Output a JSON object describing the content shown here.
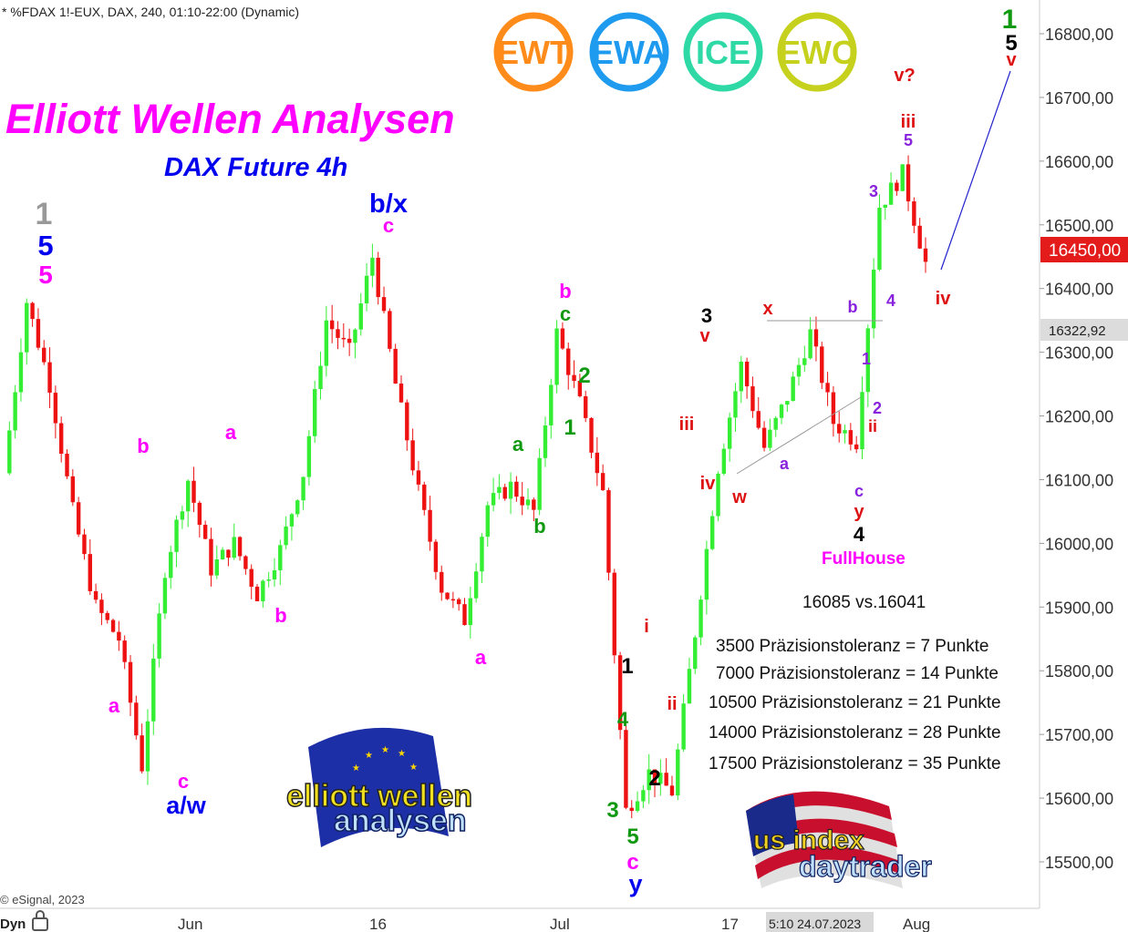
{
  "header": {
    "symbol_line": "* %FDAX 1!-EUX, DAX, 240, 01:10-22:00 (Dynamic)",
    "title": "Elliott Wellen Analysen",
    "subtitle": "DAX Future 4h",
    "copyright": "© eSignal, 2023",
    "corner_label": "Dyn"
  },
  "badges": [
    {
      "text": "EWT",
      "color": "#ff8c1a"
    },
    {
      "text": "EWA",
      "color": "#1e9bef"
    },
    {
      "text": "ICE",
      "color": "#2fd9a6"
    },
    {
      "text": "EWC",
      "color": "#c5d11c"
    }
  ],
  "price_axis": {
    "ticks": [
      "16800,00",
      "16700,00",
      "16600,00",
      "16500,00",
      "16400,00",
      "16300,00",
      "16200,00",
      "16100,00",
      "16000,00",
      "15900,00",
      "15800,00",
      "15700,00",
      "15600,00",
      "15500,00"
    ],
    "current_price": "16450,00",
    "marker_price": "16322,92"
  },
  "time_axis": {
    "labels": [
      "Jun",
      "16",
      "Jul",
      "17",
      "Aug"
    ],
    "cursor_time": "5:10 24.07.2023"
  },
  "info": {
    "fullhouse": "FullHouse",
    "comparison": "16085 vs.16041",
    "tolerances": [
      "3500 Präzisionstoleranz =  7 Punkte",
      "7000 Präzisionstoleranz = 14 Punkte",
      "10500 Präzisionstoleranz = 21 Punkte",
      "14000 Präzisionstoleranz = 28 Punkte",
      "17500 Präzisionstoleranz = 35 Punkte"
    ]
  },
  "logos": {
    "ewa_top": "elliott wellen",
    "ewa_bottom": "analysen",
    "usid_top": "us index",
    "usid_bottom": "daytrader"
  },
  "colors": {
    "up_candle": "#33ee33",
    "down_candle": "#ee1111",
    "magenta": "#ff00ff",
    "blue": "#0000ee",
    "green": "#119911",
    "red": "#dd1111",
    "purple": "#8822dd",
    "gray": "#999999",
    "black": "#000000",
    "price_tag": "#e31b1b"
  },
  "wave_labels": [
    {
      "text": "1",
      "color": "gray"
    },
    {
      "text": "5",
      "color": "blue"
    },
    {
      "text": "5",
      "color": "magenta"
    },
    {
      "text": "b",
      "color": "magenta"
    },
    {
      "text": "a",
      "color": "magenta"
    },
    {
      "text": "a",
      "color": "magenta"
    },
    {
      "text": "b",
      "color": "magenta"
    },
    {
      "text": "c",
      "color": "magenta"
    },
    {
      "text": "a/w",
      "color": "blue"
    },
    {
      "text": "b/x",
      "color": "blue"
    },
    {
      "text": "c",
      "color": "magenta"
    },
    {
      "text": "a",
      "color": "magenta"
    },
    {
      "text": "a",
      "color": "green"
    },
    {
      "text": "b",
      "color": "green"
    },
    {
      "text": "b",
      "color": "magenta"
    },
    {
      "text": "c",
      "color": "green"
    },
    {
      "text": "2",
      "color": "green"
    },
    {
      "text": "1",
      "color": "green"
    },
    {
      "text": "1",
      "color": "black"
    },
    {
      "text": "4",
      "color": "green"
    },
    {
      "text": "3",
      "color": "green"
    },
    {
      "text": "5",
      "color": "green"
    },
    {
      "text": "c",
      "color": "magenta"
    },
    {
      "text": "y",
      "color": "blue"
    },
    {
      "text": "2",
      "color": "black"
    },
    {
      "text": "i",
      "color": "red"
    },
    {
      "text": "ii",
      "color": "red"
    },
    {
      "text": "iii",
      "color": "red"
    },
    {
      "text": "iv",
      "color": "red"
    },
    {
      "text": "3",
      "color": "black"
    },
    {
      "text": "v",
      "color": "red"
    },
    {
      "text": "w",
      "color": "red"
    },
    {
      "text": "x",
      "color": "red"
    },
    {
      "text": "a",
      "color": "purple"
    },
    {
      "text": "b",
      "color": "purple"
    },
    {
      "text": "1",
      "color": "purple"
    },
    {
      "text": "2",
      "color": "purple"
    },
    {
      "text": "ii",
      "color": "red"
    },
    {
      "text": "c",
      "color": "purple"
    },
    {
      "text": "y",
      "color": "red"
    },
    {
      "text": "4",
      "color": "black"
    },
    {
      "text": "4",
      "color": "purple"
    },
    {
      "text": "3",
      "color": "purple"
    },
    {
      "text": "5",
      "color": "purple"
    },
    {
      "text": "iii",
      "color": "red"
    },
    {
      "text": "v?",
      "color": "red"
    },
    {
      "text": "iv",
      "color": "red"
    },
    {
      "text": "1",
      "color": "green"
    },
    {
      "text": "5",
      "color": "black"
    },
    {
      "text": "v",
      "color": "red"
    }
  ],
  "chart_data": {
    "type": "candlestick",
    "symbol": "%FDAX 1!-EUX",
    "timeframe": "240",
    "ylim": [
      15420,
      16880
    ],
    "x_tick_labels": [
      "Jun",
      "16",
      "Jul",
      "17",
      "Aug"
    ],
    "swing_path_close": [
      16110,
      16380,
      16250,
      16050,
      15900,
      15850,
      15650,
      15960,
      16100,
      15960,
      16000,
      15920,
      15990,
      16110,
      16350,
      16300,
      16450,
      16250,
      16080,
      15930,
      15880,
      16060,
      16090,
      16050,
      16330,
      16220,
      16080,
      15580,
      15640,
      15610,
      15860,
      16120,
      16280,
      16150,
      16230,
      16330,
      16190,
      16160,
      16530,
      16580,
      16440
    ],
    "projection": {
      "from": 16395,
      "to": 16770
    }
  }
}
